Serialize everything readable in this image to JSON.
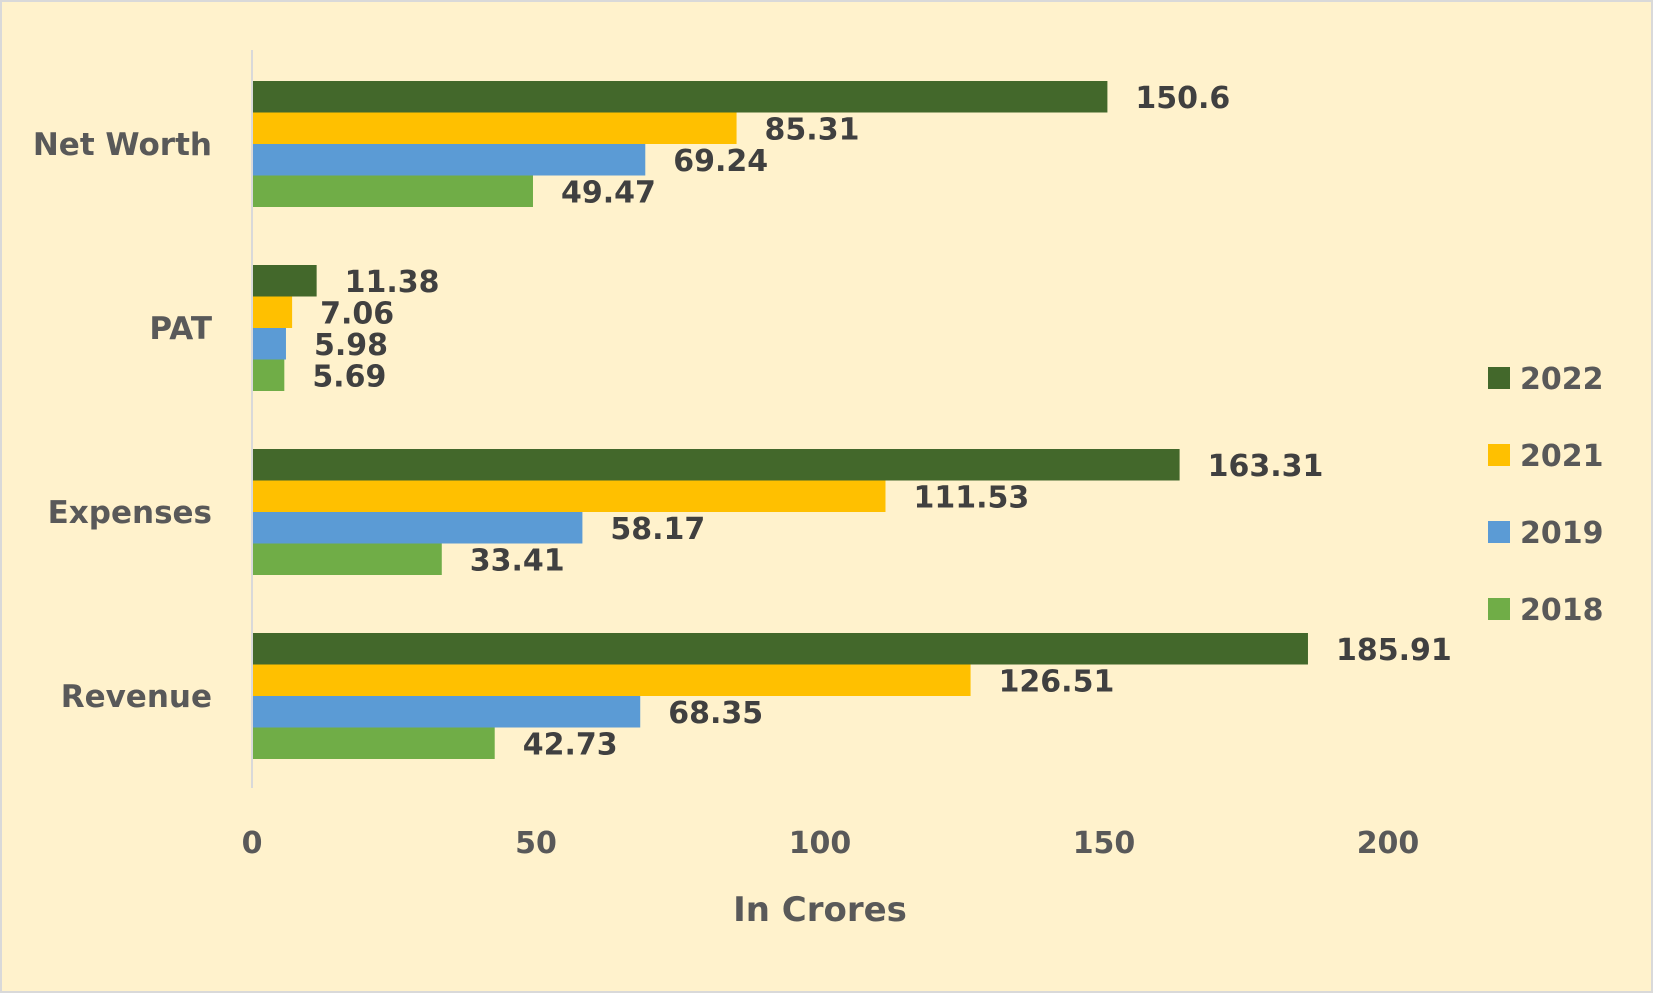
{
  "chart_data": {
    "type": "bar",
    "orientation": "horizontal",
    "title": "",
    "xlabel": "In Crores",
    "ylabel": "",
    "xlim": [
      0,
      200
    ],
    "xticks": [
      0,
      50,
      100,
      150,
      200
    ],
    "xtick_labels": [
      "0",
      "50",
      "100",
      "150",
      "200"
    ],
    "grid": false,
    "legend_position": "right",
    "categories": [
      "Net Worth",
      "PAT",
      "Expenses",
      "Revenue"
    ],
    "series": [
      {
        "name": "2022",
        "color": "#43682b",
        "values": [
          150.6,
          11.38,
          163.31,
          185.91
        ],
        "labels": [
          "150.6",
          "11.38",
          "163.31",
          "185.91"
        ]
      },
      {
        "name": "2021",
        "color": "#ffc000",
        "values": [
          85.31,
          7.06,
          111.53,
          126.51
        ],
        "labels": [
          "85.31",
          "7.06",
          "111.53",
          "126.51"
        ]
      },
      {
        "name": "2019",
        "color": "#5b9bd5",
        "values": [
          69.24,
          5.98,
          58.17,
          68.35
        ],
        "labels": [
          "69.24",
          "5.98",
          "58.17",
          "68.35"
        ]
      },
      {
        "name": "2018",
        "color": "#70ad47",
        "values": [
          49.47,
          5.69,
          33.41,
          42.73
        ],
        "labels": [
          "49.47",
          "5.69",
          "33.41",
          "42.73"
        ]
      }
    ],
    "background_color": "#fff2cc"
  }
}
